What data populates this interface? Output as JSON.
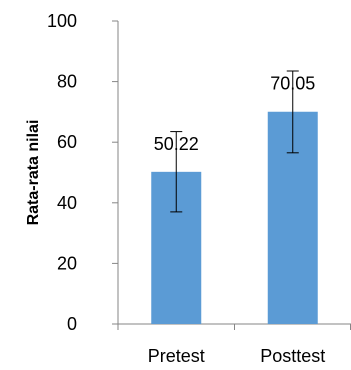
{
  "chart_data": {
    "type": "bar",
    "categories": [
      "Pretest",
      "Posttest"
    ],
    "values": [
      50.22,
      70.05
    ],
    "error_bars": [
      {
        "low": 37,
        "high": 63.5
      },
      {
        "low": 56.5,
        "high": 83.5
      }
    ],
    "data_labels": [
      "50.22",
      "70.05"
    ],
    "title": "",
    "xlabel": "",
    "ylabel": "Rata-rata nilai",
    "ylim": [
      0,
      100
    ],
    "yticks": [
      "0",
      "20",
      "40",
      "60",
      "80",
      "100"
    ],
    "grid": false,
    "legend": "none",
    "bar_color": "#5b9bd5",
    "axis_color": "#868686"
  }
}
